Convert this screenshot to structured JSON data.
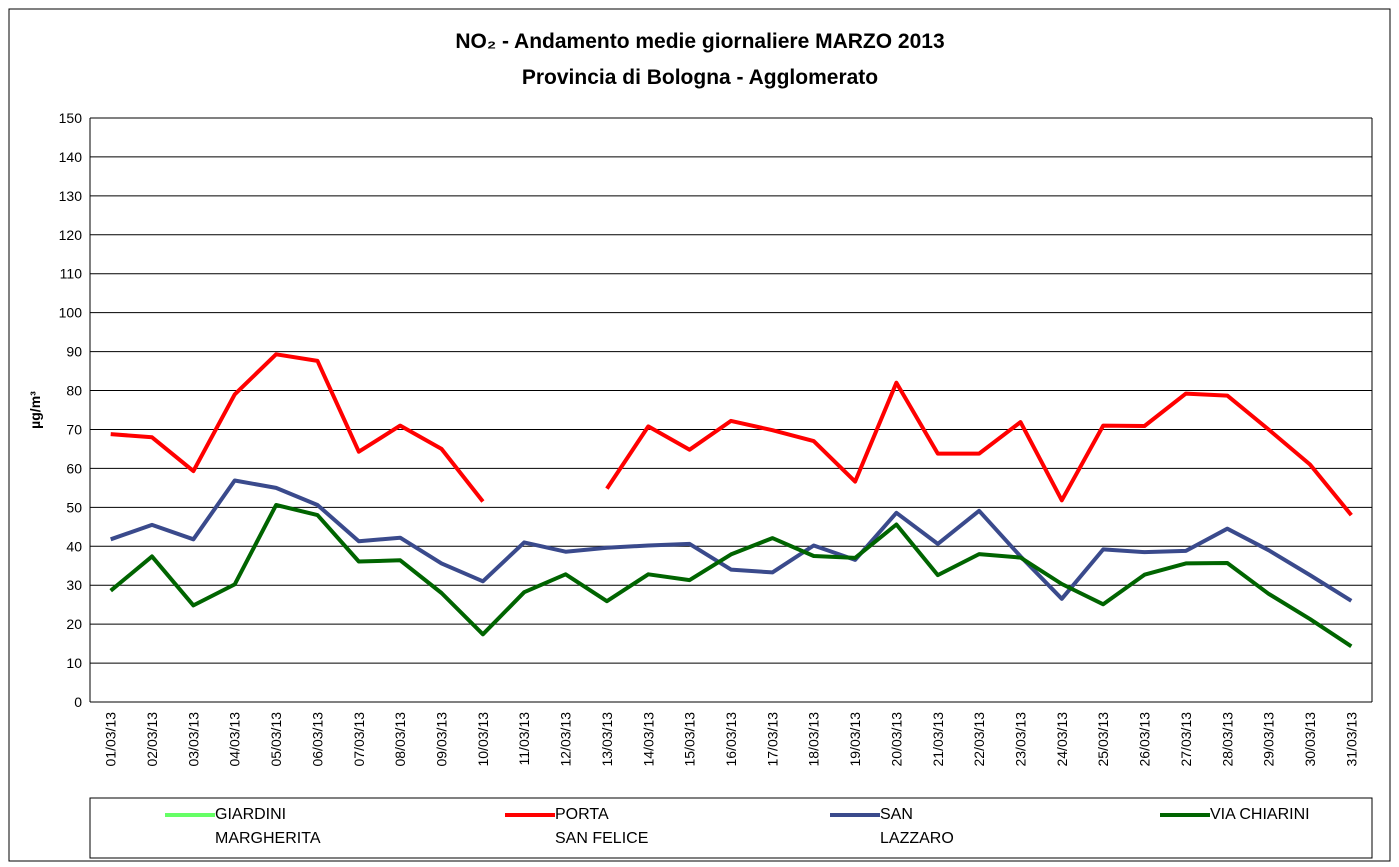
{
  "chart_data": {
    "type": "line",
    "title": "NO₂ - Andamento medie giornaliere MARZO 2013",
    "subtitle": "Provincia di Bologna - Agglomerato",
    "y_label": "µg/m³",
    "categories": [
      "01/03/13",
      "02/03/13",
      "03/03/13",
      "04/03/13",
      "05/03/13",
      "06/03/13",
      "07/03/13",
      "08/03/13",
      "09/03/13",
      "10/03/13",
      "11/03/13",
      "12/03/13",
      "13/03/13",
      "14/03/13",
      "15/03/13",
      "16/03/13",
      "17/03/13",
      "18/03/13",
      "19/03/13",
      "20/03/13",
      "21/03/13",
      "22/03/13",
      "23/03/13",
      "24/03/13",
      "25/03/13",
      "26/03/13",
      "27/03/13",
      "28/03/13",
      "29/03/13",
      "30/03/13",
      "31/03/13"
    ],
    "series": [
      {
        "name": "GIARDINI\nMARGHERITA",
        "color": "#66ff66",
        "values": [
          null,
          null,
          null,
          null,
          null,
          null,
          null,
          null,
          null,
          null,
          null,
          null,
          null,
          null,
          null,
          null,
          null,
          null,
          null,
          null,
          null,
          null,
          null,
          null,
          null,
          null,
          null,
          null,
          null,
          null,
          null
        ]
      },
      {
        "name": "PORTA\nSAN FELICE",
        "color": "#ff0000",
        "values": [
          68.8,
          68,
          59.3,
          79,
          89.3,
          87.6,
          64.3,
          71,
          65,
          51.5,
          null,
          null,
          54.8,
          70.8,
          64.8,
          72.2,
          69.8,
          67,
          56.6,
          82,
          63.8,
          63.8,
          71.9,
          51.8,
          71,
          70.9,
          79.2,
          78.7,
          70,
          61,
          48
        ]
      },
      {
        "name": "SAN\nLAZZARO",
        "color": "#3a4a8c",
        "values": [
          41.8,
          45.5,
          41.8,
          56.9,
          55,
          50.6,
          41.3,
          42.2,
          35.6,
          31,
          41,
          38.6,
          39.6,
          40.2,
          40.6,
          34,
          33.3,
          40.2,
          36.5,
          48.6,
          40.6,
          49.1,
          37.4,
          26.5,
          39.2,
          38.5,
          38.8,
          44.5,
          39,
          32.6,
          26
        ]
      },
      {
        "name": "VIA CHIARINI",
        "color": "#006400",
        "values": [
          28.6,
          37.4,
          24.8,
          30.2,
          50.6,
          48,
          36.1,
          36.4,
          28,
          17.4,
          28.2,
          32.8,
          25.9,
          32.8,
          31.3,
          37.9,
          42.1,
          37.5,
          37,
          45.6,
          32.6,
          38,
          37.1,
          30.3,
          25.1,
          32.7,
          35.6,
          35.7,
          27.8,
          21.3,
          14.3
        ]
      }
    ],
    "ylim": [
      0,
      150
    ],
    "yticks": [
      0,
      10,
      20,
      30,
      40,
      50,
      60,
      70,
      80,
      90,
      100,
      110,
      120,
      130,
      140,
      150
    ],
    "grid": true,
    "legend": "bottom"
  }
}
